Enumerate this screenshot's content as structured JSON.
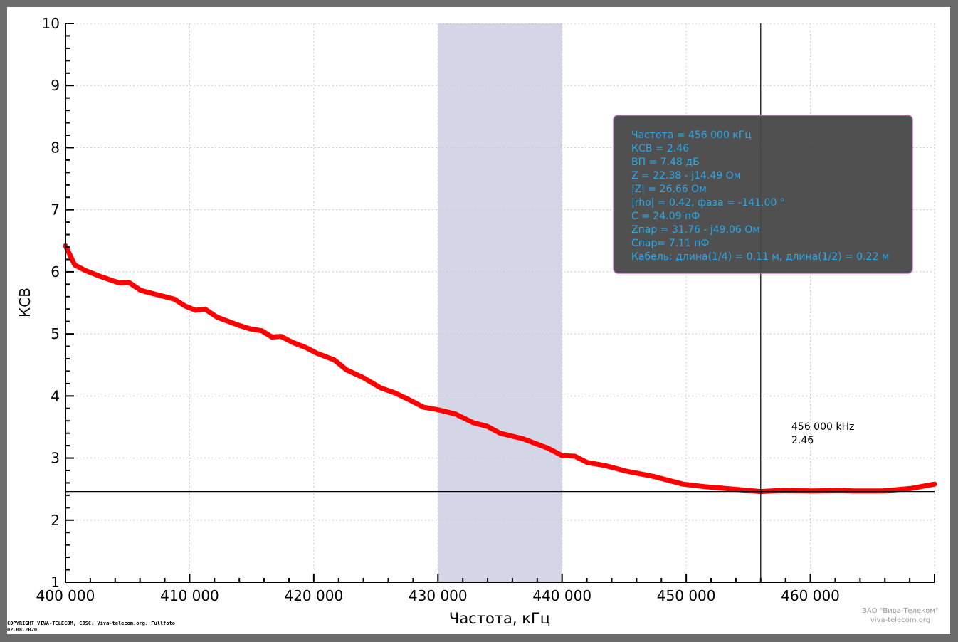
{
  "chart_data": {
    "type": "line",
    "xlabel": "Частота, кГц",
    "ylabel": "КСВ",
    "xlim": [
      400000,
      470000
    ],
    "ylim": [
      1,
      10
    ],
    "grid": true,
    "x_ticks": [
      "400 000",
      "410 000",
      "420 000",
      "430 000",
      "440 000",
      "450 000",
      "460 000"
    ],
    "x_tick_values": [
      400000,
      410000,
      420000,
      430000,
      440000,
      450000,
      460000
    ],
    "y_ticks": [
      "1",
      "2",
      "3",
      "4",
      "5",
      "6",
      "7",
      "8",
      "9",
      "10"
    ],
    "highlight_band": [
      430000,
      440000
    ],
    "series": [
      {
        "color": "#ff0000",
        "x": [
          400000,
          400750,
          401600,
          402750,
          403600,
          404350,
          405100,
          406070,
          407600,
          408770,
          409630,
          410490,
          411230,
          412210,
          413930,
          414900,
          415820,
          416620,
          417360,
          418340,
          419370,
          420230,
          421660,
          422640,
          423950,
          425390,
          426530,
          427680,
          428830,
          429970,
          431400,
          432840,
          433980,
          435010,
          436850,
          438850,
          440000,
          441030,
          442010,
          443440,
          445160,
          447450,
          449740,
          451460,
          454330,
          456000,
          457770,
          460060,
          462350,
          463500,
          465790,
          468080,
          470000
        ],
        "y": [
          6.42,
          6.11,
          6.02,
          5.93,
          5.87,
          5.82,
          5.83,
          5.7,
          5.62,
          5.56,
          5.45,
          5.38,
          5.4,
          5.27,
          5.14,
          5.08,
          5.05,
          4.95,
          4.96,
          4.86,
          4.78,
          4.69,
          4.58,
          4.42,
          4.3,
          4.13,
          4.05,
          3.94,
          3.82,
          3.78,
          3.71,
          3.57,
          3.51,
          3.4,
          3.31,
          3.16,
          3.04,
          3.03,
          2.93,
          2.88,
          2.79,
          2.7,
          2.58,
          2.54,
          2.49,
          2.46,
          2.48,
          2.47,
          2.48,
          2.47,
          2.47,
          2.51,
          2.58
        ]
      }
    ],
    "cursor": {
      "x": 456000,
      "y": 2.46,
      "label_freq": "456 000 kHz",
      "label_value": "2.46"
    },
    "info_box": [
      "Частота = 456 000 кГц",
      "КСВ = 2.46",
      "ВП = 7.48 дБ",
      "Z = 22.38 - j14.49 Ом",
      "|Z| = 26.66 Ом",
      "|rho| = 0.42, фаза = -141.00 °",
      "C = 24.09 пФ",
      "Zпар = 31.76 - j49.06 Ом",
      "Спар= 7.11 пФ",
      "Кабель: длина(1/4) = 0.11 м, длина(1/2) = 0.22 м"
    ]
  },
  "footer": {
    "copyright_line1": "COPYRIGHT VIVA-TELECOM, CJSC. Viva-telecom.org. Fullfoto",
    "copyright_line2": "02.08.2020",
    "watermark_company": "ЗАО \"Вива-Телеком\"",
    "watermark_site": "viva-telecom.org"
  }
}
